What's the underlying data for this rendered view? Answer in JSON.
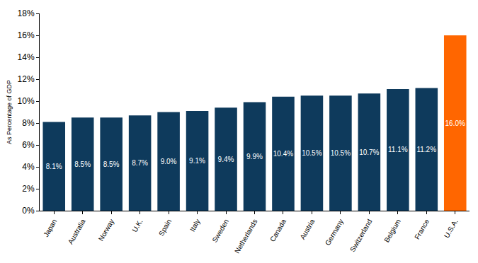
{
  "chart_data": {
    "type": "bar",
    "ylabel": "As Percentage of GDP",
    "categories": [
      "Japan",
      "Australia",
      "Norway",
      "U.K.",
      "Spain",
      "Italy",
      "Sweden",
      "Netherlands",
      "Canada",
      "Austria",
      "Germany",
      "Switzerland",
      "Belgium",
      "France",
      "U.S.A."
    ],
    "values": [
      8.1,
      8.5,
      8.5,
      8.7,
      9.0,
      9.1,
      9.4,
      9.9,
      10.4,
      10.5,
      10.5,
      10.7,
      11.1,
      11.2,
      16.0
    ],
    "value_labels": [
      "8.1%",
      "8.5%",
      "8.5%",
      "8.7%",
      "9.0%",
      "9.1%",
      "9.4%",
      "9.9%",
      "10.4%",
      "10.5%",
      "10.5%",
      "10.7%",
      "11.1%",
      "11.2%",
      "16.0%"
    ],
    "colors": [
      "#0e3a5c",
      "#0e3a5c",
      "#0e3a5c",
      "#0e3a5c",
      "#0e3a5c",
      "#0e3a5c",
      "#0e3a5c",
      "#0e3a5c",
      "#0e3a5c",
      "#0e3a5c",
      "#0e3a5c",
      "#0e3a5c",
      "#0e3a5c",
      "#0e3a5c",
      "#ff6600"
    ],
    "ylim": [
      0,
      18
    ],
    "yticks": [
      {
        "value": 0,
        "label": "0%"
      },
      {
        "value": 2,
        "label": "2%"
      },
      {
        "value": 4,
        "label": "4%"
      },
      {
        "value": 6,
        "label": "6%"
      },
      {
        "value": 8,
        "label": "8%"
      },
      {
        "value": 10,
        "label": "10%"
      },
      {
        "value": 12,
        "label": "12%"
      },
      {
        "value": 14,
        "label": "14%"
      },
      {
        "value": 16,
        "label": "16%"
      },
      {
        "value": 18,
        "label": "18%"
      }
    ],
    "grid": false,
    "data_labels": true
  }
}
